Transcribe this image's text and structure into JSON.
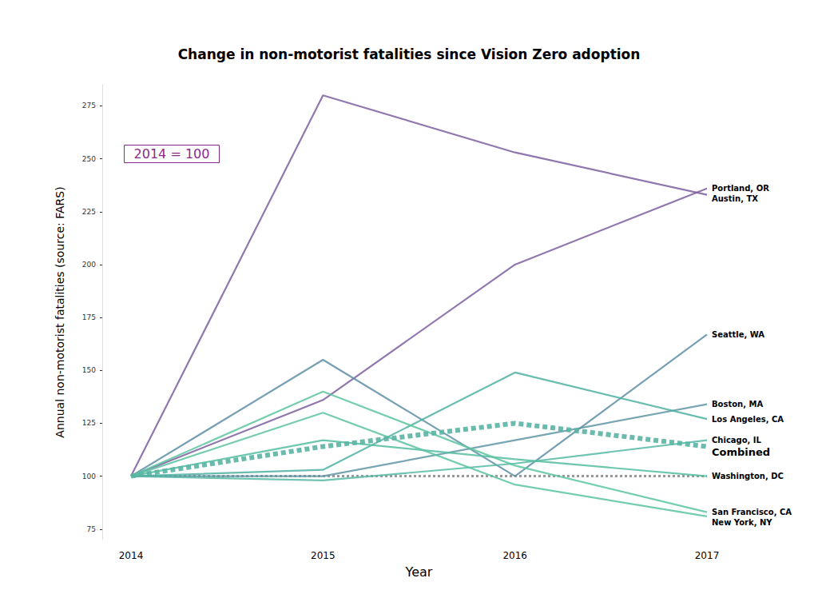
{
  "chart_data": {
    "type": "line",
    "title": "Change in non-motorist fatalities since Vision Zero adoption",
    "x_label": "Year",
    "y_label": "Annual non-motorist fatalities (source: FARS)",
    "annotation": "2014 = 100",
    "baseline": 100,
    "categories": [
      "2014",
      "2015",
      "2016",
      "2017"
    ],
    "ylim": [
      70,
      285
    ],
    "yticks": [
      75,
      100,
      125,
      150,
      175,
      200,
      225,
      250,
      275
    ],
    "grid": false,
    "series": [
      {
        "name": "Portland, OR",
        "color": "#7d5fa0",
        "line_style": "solid",
        "values": [
          100,
          136,
          200,
          236
        ]
      },
      {
        "name": "Austin, TX",
        "color": "#7d5fa0",
        "line_style": "solid",
        "values": [
          100,
          280,
          253,
          233
        ]
      },
      {
        "name": "Seattle, WA",
        "color": "#5e8ea6",
        "line_style": "solid",
        "values": [
          100,
          155,
          100,
          167
        ]
      },
      {
        "name": "Boston, MA",
        "color": "#5f97a5",
        "line_style": "solid",
        "values": [
          100,
          100,
          117,
          134
        ]
      },
      {
        "name": "Los Angeles, CA",
        "color": "#4db0a2",
        "line_style": "solid",
        "values": [
          100,
          103,
          149,
          127
        ]
      },
      {
        "name": "Chicago, IL",
        "color": "#55b9a3",
        "line_style": "solid",
        "values": [
          100,
          98,
          106,
          117
        ]
      },
      {
        "name": "Washington, DC",
        "color": "#52bda0",
        "line_style": "solid",
        "values": [
          100,
          117,
          108,
          100
        ]
      },
      {
        "name": "San Francisco, CA",
        "color": "#5cc5a0",
        "line_style": "solid",
        "values": [
          100,
          140,
          105,
          83
        ]
      },
      {
        "name": "New York, NY",
        "color": "#5cc3a2",
        "line_style": "solid",
        "values": [
          100,
          130,
          96,
          81
        ]
      },
      {
        "name": "Combined",
        "color": "#5ab4a3",
        "line_style": "dashed",
        "values": [
          100,
          114,
          125,
          114
        ]
      }
    ]
  }
}
